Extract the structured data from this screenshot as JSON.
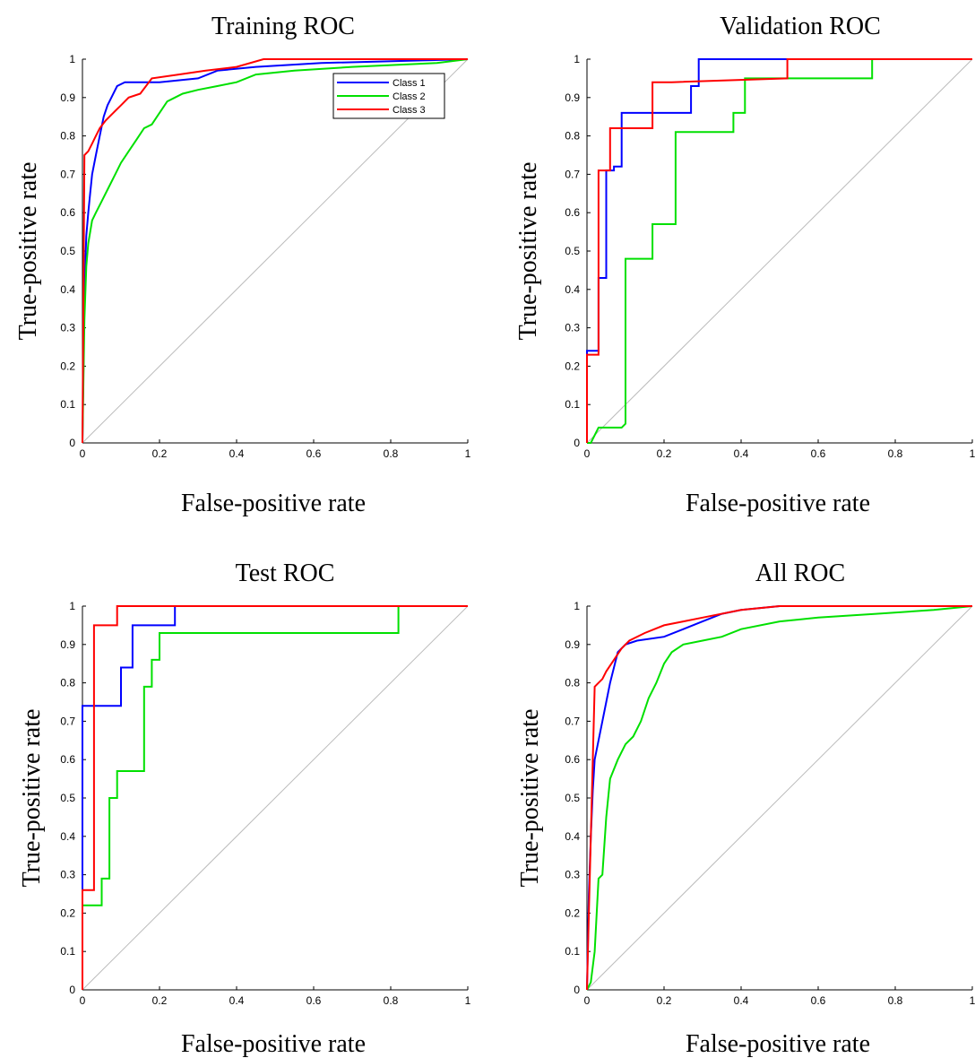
{
  "colors": {
    "class1": "#0000ff",
    "class2": "#00e000",
    "class3": "#ff0000",
    "diagonal": "#bbbbbb",
    "axis": "#000000"
  },
  "chart_data": [
    {
      "type": "line",
      "title": "Training ROC",
      "xlabel": "False-positive rate",
      "ylabel": "True-positive rate",
      "xlim": [
        0,
        1
      ],
      "ylim": [
        0,
        1
      ],
      "xticks": [
        "0",
        "0.2",
        "0.4",
        "0.6",
        "0.8",
        "1"
      ],
      "yticks": [
        "0",
        "0.1",
        "0.2",
        "0.3",
        "0.4",
        "0.5",
        "0.6",
        "0.7",
        "0.8",
        "0.9",
        "1"
      ],
      "legend": {
        "placement": "top-right",
        "entries": [
          "Class 1",
          "Class 2",
          "Class 3"
        ]
      },
      "series": [
        {
          "name": "Class 1",
          "color": "class1",
          "x": [
            0,
            0.005,
            0.01,
            0.015,
            0.02,
            0.025,
            0.035,
            0.045,
            0.055,
            0.065,
            0.075,
            0.09,
            0.11,
            0.2,
            0.3,
            0.35,
            0.45,
            0.62,
            1
          ],
          "y": [
            0,
            0.4,
            0.54,
            0.6,
            0.65,
            0.7,
            0.75,
            0.8,
            0.85,
            0.88,
            0.9,
            0.93,
            0.94,
            0.94,
            0.95,
            0.97,
            0.98,
            0.99,
            1
          ]
        },
        {
          "name": "Class 2",
          "color": "class2",
          "x": [
            0,
            0.005,
            0.01,
            0.015,
            0.025,
            0.035,
            0.05,
            0.065,
            0.085,
            0.1,
            0.12,
            0.14,
            0.16,
            0.18,
            0.2,
            0.22,
            0.24,
            0.26,
            0.3,
            0.35,
            0.4,
            0.45,
            0.55,
            0.7,
            0.92,
            1
          ],
          "y": [
            0,
            0.32,
            0.46,
            0.52,
            0.58,
            0.6,
            0.63,
            0.66,
            0.7,
            0.73,
            0.76,
            0.79,
            0.82,
            0.83,
            0.86,
            0.89,
            0.9,
            0.91,
            0.92,
            0.93,
            0.94,
            0.96,
            0.97,
            0.98,
            0.99,
            1
          ]
        },
        {
          "name": "Class 3",
          "color": "class3",
          "x": [
            0,
            0.005,
            0.015,
            0.025,
            0.035,
            0.045,
            0.06,
            0.08,
            0.1,
            0.12,
            0.15,
            0.18,
            0.25,
            0.32,
            0.4,
            0.47,
            1
          ],
          "y": [
            0,
            0.75,
            0.76,
            0.78,
            0.8,
            0.82,
            0.84,
            0.86,
            0.88,
            0.9,
            0.91,
            0.95,
            0.96,
            0.97,
            0.98,
            1,
            1
          ]
        }
      ]
    },
    {
      "type": "line",
      "title": "Validation ROC",
      "xlabel": "False-positive rate",
      "ylabel": "True-positive rate",
      "xlim": [
        0,
        1
      ],
      "ylim": [
        0,
        1
      ],
      "xticks": [
        "0",
        "0.2",
        "0.4",
        "0.6",
        "0.8",
        "1"
      ],
      "yticks": [
        "0",
        "0.1",
        "0.2",
        "0.3",
        "0.4",
        "0.5",
        "0.6",
        "0.7",
        "0.8",
        "0.9",
        "1"
      ],
      "series": [
        {
          "name": "Class 1",
          "color": "class1",
          "x": [
            0,
            0,
            0.03,
            0.03,
            0.05,
            0.05,
            0.07,
            0.07,
            0.09,
            0.09,
            0.27,
            0.27,
            0.29,
            0.29,
            0.5,
            1
          ],
          "y": [
            0,
            0.24,
            0.24,
            0.43,
            0.43,
            0.71,
            0.71,
            0.72,
            0.72,
            0.86,
            0.86,
            0.93,
            0.93,
            1,
            1,
            1
          ]
        },
        {
          "name": "Class 2",
          "color": "class2",
          "x": [
            0,
            0.01,
            0.03,
            0.04,
            0.09,
            0.1,
            0.1,
            0.17,
            0.17,
            0.23,
            0.23,
            0.38,
            0.38,
            0.41,
            0.41,
            0.74,
            0.74,
            1
          ],
          "y": [
            0,
            0,
            0.04,
            0.04,
            0.04,
            0.05,
            0.48,
            0.48,
            0.57,
            0.57,
            0.81,
            0.81,
            0.86,
            0.86,
            0.95,
            0.95,
            1,
            1
          ]
        },
        {
          "name": "Class 3",
          "color": "class3",
          "x": [
            0,
            0,
            0.03,
            0.03,
            0.06,
            0.06,
            0.17,
            0.17,
            0.22,
            0.52,
            0.52,
            1
          ],
          "y": [
            0,
            0.23,
            0.23,
            0.71,
            0.71,
            0.82,
            0.82,
            0.94,
            0.94,
            0.95,
            1,
            1
          ]
        }
      ]
    },
    {
      "type": "line",
      "title": "Test ROC",
      "xlabel": "False-positive rate",
      "ylabel": "True-positive rate",
      "xlim": [
        0,
        1
      ],
      "ylim": [
        0,
        1
      ],
      "xticks": [
        "0",
        "0.2",
        "0.4",
        "0.6",
        "0.8",
        "1"
      ],
      "yticks": [
        "0",
        "0.1",
        "0.2",
        "0.3",
        "0.4",
        "0.5",
        "0.6",
        "0.7",
        "0.8",
        "0.9",
        "1"
      ],
      "series": [
        {
          "name": "Class 1",
          "color": "class1",
          "x": [
            0,
            0,
            0.1,
            0.1,
            0.13,
            0.13,
            0.24,
            0.24,
            1
          ],
          "y": [
            0,
            0.74,
            0.74,
            0.84,
            0.84,
            0.95,
            0.95,
            1,
            1
          ]
        },
        {
          "name": "Class 2",
          "color": "class2",
          "x": [
            0,
            0,
            0.05,
            0.05,
            0.07,
            0.07,
            0.09,
            0.09,
            0.11,
            0.11,
            0.16,
            0.16,
            0.18,
            0.18,
            0.2,
            0.2,
            0.82,
            0.82,
            1
          ],
          "y": [
            0,
            0.22,
            0.22,
            0.29,
            0.29,
            0.5,
            0.5,
            0.57,
            0.57,
            0.57,
            0.57,
            0.79,
            0.79,
            0.86,
            0.86,
            0.93,
            0.93,
            1,
            1
          ]
        },
        {
          "name": "Class 3",
          "color": "class3",
          "x": [
            0,
            0,
            0.03,
            0.03,
            0.09,
            0.09,
            1
          ],
          "y": [
            0,
            0.26,
            0.26,
            0.95,
            0.95,
            1,
            1
          ]
        }
      ]
    },
    {
      "type": "line",
      "title": "All ROC",
      "xlabel": "False-positive rate",
      "ylabel": "True-positive rate",
      "xlim": [
        0,
        1
      ],
      "ylim": [
        0,
        1
      ],
      "xticks": [
        "0",
        "0.2",
        "0.4",
        "0.6",
        "0.8",
        "1"
      ],
      "yticks": [
        "0",
        "0.1",
        "0.2",
        "0.3",
        "0.4",
        "0.5",
        "0.6",
        "0.7",
        "0.8",
        "0.9",
        "1"
      ],
      "series": [
        {
          "name": "Class 1",
          "color": "class1",
          "x": [
            0,
            0.005,
            0.01,
            0.015,
            0.02,
            0.03,
            0.04,
            0.05,
            0.06,
            0.07,
            0.08,
            0.1,
            0.13,
            0.2,
            0.25,
            0.3,
            0.35,
            0.4,
            0.5,
            0.75,
            1
          ],
          "y": [
            0,
            0.25,
            0.4,
            0.52,
            0.6,
            0.65,
            0.7,
            0.75,
            0.8,
            0.84,
            0.88,
            0.9,
            0.91,
            0.92,
            0.94,
            0.96,
            0.98,
            0.99,
            1,
            1,
            1
          ]
        },
        {
          "name": "Class 2",
          "color": "class2",
          "x": [
            0,
            0.01,
            0.02,
            0.03,
            0.04,
            0.05,
            0.06,
            0.08,
            0.1,
            0.12,
            0.14,
            0.16,
            0.18,
            0.2,
            0.22,
            0.25,
            0.3,
            0.35,
            0.4,
            0.5,
            0.6,
            0.75,
            0.9,
            1
          ],
          "y": [
            0,
            0.02,
            0.1,
            0.29,
            0.3,
            0.45,
            0.55,
            0.6,
            0.64,
            0.66,
            0.7,
            0.76,
            0.8,
            0.85,
            0.88,
            0.9,
            0.91,
            0.92,
            0.94,
            0.96,
            0.97,
            0.98,
            0.99,
            1
          ]
        },
        {
          "name": "Class 3",
          "color": "class3",
          "x": [
            0,
            0.005,
            0.01,
            0.02,
            0.03,
            0.04,
            0.05,
            0.07,
            0.09,
            0.11,
            0.15,
            0.2,
            0.25,
            0.3,
            0.4,
            0.5,
            1
          ],
          "y": [
            0,
            0.2,
            0.4,
            0.79,
            0.8,
            0.81,
            0.83,
            0.86,
            0.89,
            0.91,
            0.93,
            0.95,
            0.96,
            0.97,
            0.99,
            1,
            1
          ]
        }
      ]
    }
  ]
}
